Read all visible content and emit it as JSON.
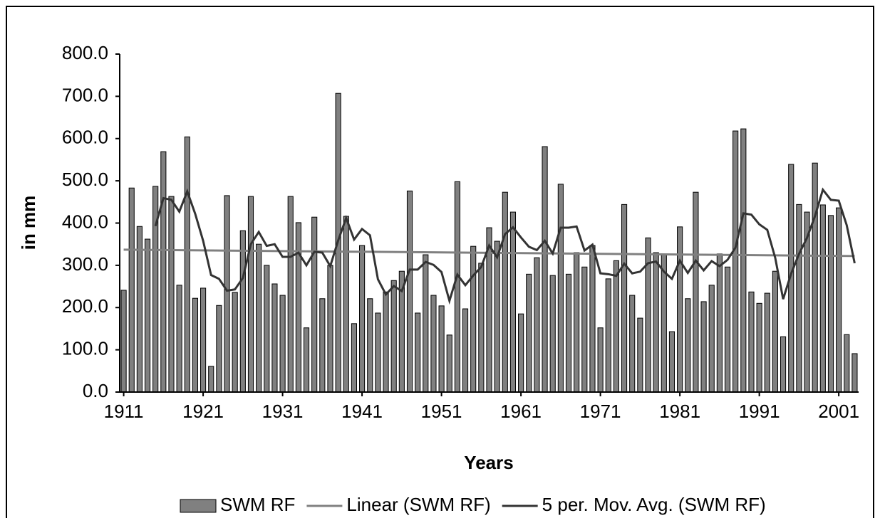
{
  "chart_data": {
    "type": "bar",
    "y_label": "in mm",
    "x_label": "Years",
    "x": [
      1911,
      1912,
      1913,
      1914,
      1915,
      1916,
      1917,
      1918,
      1919,
      1920,
      1921,
      1922,
      1923,
      1924,
      1925,
      1926,
      1927,
      1928,
      1929,
      1930,
      1931,
      1932,
      1933,
      1934,
      1935,
      1936,
      1937,
      1938,
      1939,
      1940,
      1941,
      1942,
      1943,
      1944,
      1945,
      1946,
      1947,
      1948,
      1949,
      1950,
      1951,
      1952,
      1953,
      1954,
      1955,
      1956,
      1957,
      1958,
      1959,
      1960,
      1961,
      1962,
      1963,
      1964,
      1965,
      1966,
      1967,
      1968,
      1969,
      1970,
      1971,
      1972,
      1973,
      1974,
      1975,
      1976,
      1977,
      1978,
      1979,
      1980,
      1981,
      1982,
      1983,
      1984,
      1985,
      1986,
      1987,
      1988,
      1989,
      1990,
      1991,
      1992,
      1993,
      1994,
      1995,
      1996,
      1997,
      1998,
      1999,
      2000,
      2001,
      2002,
      2003
    ],
    "series": [
      {
        "name": "SWM RF",
        "kind": "bar",
        "color": "#808080",
        "values": [
          241,
          483,
          392,
          362,
          487,
          569,
          463,
          253,
          604,
          222,
          246,
          61,
          205,
          465,
          236,
          382,
          463,
          350,
          300,
          256,
          229,
          463,
          401,
          152,
          414,
          221,
          300,
          707,
          416,
          162,
          347,
          221,
          187,
          237,
          264,
          286,
          476,
          187,
          325,
          229,
          204,
          135,
          498,
          197,
          345,
          305,
          389,
          357,
          473,
          426,
          185,
          279,
          318,
          581,
          276,
          492,
          279,
          330,
          296,
          347,
          152,
          268,
          311,
          444,
          229,
          175,
          365,
          330,
          325,
          143,
          391,
          221,
          473,
          214,
          253,
          327,
          296,
          618,
          623,
          237,
          210,
          234,
          286,
          131,
          539,
          444,
          426,
          542,
          443,
          418,
          436,
          136,
          91
        ]
      },
      {
        "name": "Linear (SWM RF)",
        "kind": "line",
        "color": "#808080",
        "x": [
          1911,
          2003
        ],
        "values": [
          337,
          322
        ]
      },
      {
        "name": "5 per. Mov. Avg. (SWM RF)",
        "kind": "line",
        "color": "#333333",
        "values": [
          null,
          null,
          null,
          null,
          393,
          459,
          455,
          427,
          475,
          422,
          358,
          277,
          268,
          240,
          243,
          270,
          350,
          379,
          346,
          350,
          320,
          320,
          330,
          300,
          332,
          330,
          298,
          359,
          412,
          361,
          386,
          371,
          267,
          231,
          251,
          239,
          290,
          290,
          308,
          301,
          284,
          216,
          278,
          253,
          276,
          296,
          347,
          319,
          374,
          390,
          366,
          344,
          336,
          358,
          328,
          389,
          389,
          392,
          335,
          349,
          281,
          279,
          275,
          304,
          281,
          285,
          305,
          309,
          285,
          268,
          311,
          282,
          311,
          288,
          310,
          298,
          313,
          342,
          423,
          420,
          397,
          384,
          318,
          220,
          280,
          327,
          365,
          416,
          479,
          455,
          453,
          395,
          305
        ]
      }
    ],
    "xlim": [
      1910.5,
      2003.5
    ],
    "xticks": [
      1911,
      1921,
      1931,
      1941,
      1951,
      1961,
      1971,
      1981,
      1991,
      2001
    ],
    "ylim": [
      0,
      800
    ],
    "yticks": [
      {
        "value": 0,
        "label": "0.0"
      },
      {
        "value": 100,
        "label": "100.0"
      },
      {
        "value": 200,
        "label": "200.0"
      },
      {
        "value": 300,
        "label": "300.0"
      },
      {
        "value": 400,
        "label": "400.0"
      },
      {
        "value": 500,
        "label": "500.0"
      },
      {
        "value": 600,
        "label": "600.0"
      },
      {
        "value": 700,
        "label": "700.0"
      },
      {
        "value": 800,
        "label": "800.0"
      }
    ],
    "grid": false,
    "legend": "bottom"
  }
}
